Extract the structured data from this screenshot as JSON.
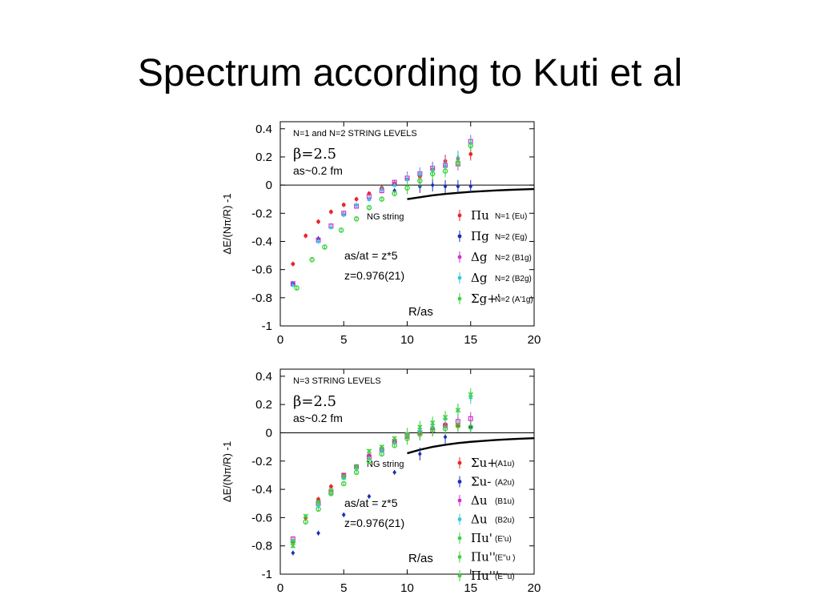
{
  "slide": {
    "title": "Spectrum according to Kuti et al"
  },
  "colors": {
    "red": "#e8262a",
    "blue": "#1a2fb4",
    "magenta": "#cc33cc",
    "cyan": "#33c7e6",
    "green": "#3fd23f"
  },
  "chart_data": [
    {
      "type": "scatter",
      "title": "N=1 and N=2 STRING LEVELS",
      "beta_label": "β=2.5",
      "spacing_label": "as~0.2 fm",
      "ratio_label": "as/at = z*5",
      "z_label": "z=0.976(21)",
      "xlabel": "R/as",
      "ylabel": "ΔE/(Nπ/R) -1",
      "xlim": [
        0,
        20
      ],
      "ylim": [
        -1,
        0.45
      ],
      "xticks": [
        "0",
        "5",
        "10",
        "15",
        "20"
      ],
      "yticks": [
        "0.4",
        "0.2",
        "0",
        "-0.2",
        "-0.4",
        "-0.6",
        "-0.8",
        "-1"
      ],
      "ng_label": "NG string",
      "ng_curve": {
        "x": [
          10,
          11,
          12,
          13,
          14,
          15,
          16,
          17,
          18,
          19,
          20
        ],
        "y": [
          -0.1,
          -0.086,
          -0.073,
          -0.063,
          -0.055,
          -0.048,
          -0.043,
          -0.038,
          -0.034,
          -0.031,
          -0.028
        ]
      },
      "series": [
        {
          "name": "Πu",
          "state": "N=1 (Eu)",
          "color": "red",
          "x": [
            1,
            2,
            3,
            4,
            5,
            6,
            7,
            8,
            9,
            10,
            11,
            12,
            13,
            14,
            15
          ],
          "y": [
            -0.56,
            -0.36,
            -0.26,
            -0.19,
            -0.14,
            -0.1,
            -0.06,
            -0.02,
            0.01,
            0.04,
            0.06,
            0.11,
            0.17,
            0.19,
            0.22
          ]
        },
        {
          "name": "Πg",
          "state": "N=2 (Eg)",
          "color": "blue",
          "x": [
            1,
            3,
            5,
            7,
            9,
            11,
            12,
            13,
            14,
            15
          ],
          "y": [
            -0.7,
            -0.38,
            -0.21,
            -0.1,
            -0.04,
            -0.01,
            0.0,
            -0.01,
            -0.01,
            -0.01
          ]
        },
        {
          "name": "Δg",
          "state": "N=2 (B1g)",
          "color": "magenta",
          "x": [
            1,
            3,
            4,
            5,
            6,
            7,
            8,
            9,
            10,
            11,
            12,
            13,
            14,
            15
          ],
          "y": [
            -0.7,
            -0.39,
            -0.29,
            -0.2,
            -0.15,
            -0.08,
            -0.04,
            0.02,
            0.05,
            0.08,
            0.12,
            0.14,
            0.15,
            0.31
          ]
        },
        {
          "name": "Δg",
          "state": "N=2 (B2g)",
          "color": "cyan",
          "x": [
            1,
            3,
            4,
            5,
            6,
            7,
            8,
            9,
            10,
            11,
            12,
            13,
            14,
            15
          ],
          "y": [
            -0.71,
            -0.4,
            -0.3,
            -0.21,
            -0.14,
            -0.1,
            -0.03,
            0.0,
            0.04,
            0.08,
            0.11,
            0.14,
            0.2,
            0.3
          ]
        },
        {
          "name": "Σg+'",
          "state": "N=2 (A'1g)",
          "color": "green",
          "x": [
            1.3,
            2.5,
            3.5,
            4.8,
            6,
            7,
            8,
            9,
            10,
            11,
            12,
            13,
            14,
            15
          ],
          "y": [
            -0.73,
            -0.53,
            -0.44,
            -0.32,
            -0.24,
            -0.16,
            -0.1,
            -0.06,
            -0.02,
            0.03,
            0.08,
            0.1,
            0.16,
            0.28
          ]
        }
      ]
    },
    {
      "type": "scatter",
      "title": "N=3 STRING LEVELS",
      "beta_label": "β=2.5",
      "spacing_label": "as~0.2 fm",
      "ratio_label": "as/at = z*5",
      "z_label": "z=0.976(21)",
      "xlabel": "R/as",
      "ylabel": "ΔE/(Nπ/R) -1",
      "xlim": [
        0,
        20
      ],
      "ylim": [
        -1,
        0.45
      ],
      "xticks": [
        "0",
        "5",
        "10",
        "15",
        "20"
      ],
      "yticks": [
        "0.4",
        "0.2",
        "0",
        "-0.2",
        "-0.4",
        "-0.6",
        "-0.8",
        "-1"
      ],
      "ng_label": "NG string",
      "ng_curve": {
        "x": [
          10,
          11,
          12,
          13,
          14,
          15,
          16,
          17,
          18,
          19,
          20
        ],
        "y": [
          -0.145,
          -0.12,
          -0.1,
          -0.085,
          -0.073,
          -0.064,
          -0.057,
          -0.051,
          -0.046,
          -0.042,
          -0.038
        ]
      },
      "series": [
        {
          "name": "Σu+",
          "state": "(A1u)",
          "color": "red",
          "x": [
            1,
            2,
            3,
            4,
            5,
            6,
            7,
            8,
            9,
            10,
            11,
            12,
            13,
            14
          ],
          "y": [
            -0.77,
            -0.6,
            -0.47,
            -0.38,
            -0.3,
            -0.24,
            -0.16,
            -0.11,
            -0.06,
            -0.03,
            0.0,
            0.03,
            0.06,
            0.05
          ]
        },
        {
          "name": "Σu-",
          "state": "(A2u)",
          "color": "blue",
          "x": [
            1,
            3,
            5,
            7,
            9,
            11,
            13,
            15
          ],
          "y": [
            -0.85,
            -0.71,
            -0.58,
            -0.45,
            -0.28,
            -0.15,
            -0.03,
            0.04
          ]
        },
        {
          "name": "Δu",
          "state": "(B1u)",
          "color": "magenta",
          "x": [
            1,
            3,
            4,
            5,
            6,
            7,
            8,
            9,
            10,
            11,
            12,
            13,
            14,
            15
          ],
          "y": [
            -0.75,
            -0.5,
            -0.42,
            -0.3,
            -0.24,
            -0.17,
            -0.12,
            -0.06,
            -0.02,
            0.0,
            0.02,
            0.05,
            0.08,
            0.1
          ]
        },
        {
          "name": "Δu",
          "state": "(B2u)",
          "color": "cyan",
          "x": [
            1,
            3,
            4,
            5,
            6,
            7,
            8,
            9,
            10,
            11,
            12,
            13,
            14,
            15
          ],
          "y": [
            -0.76,
            -0.51,
            -0.41,
            -0.32,
            -0.25,
            -0.18,
            -0.12,
            -0.07,
            -0.02,
            0.02,
            0.05,
            0.1,
            0.16,
            0.25
          ]
        },
        {
          "name": "Πu'",
          "state": "(E'u)",
          "color": "green",
          "x": [
            1,
            2,
            3,
            4,
            5,
            6,
            7,
            8,
            9,
            10,
            11,
            12,
            13,
            14,
            15
          ],
          "y": [
            -0.77,
            -0.63,
            -0.54,
            -0.43,
            -0.36,
            -0.28,
            -0.2,
            -0.15,
            -0.09,
            -0.04,
            -0.01,
            0.02,
            0.03,
            0.05,
            0.04
          ]
        },
        {
          "name": "Πu''",
          "state": "(E''u )",
          "color": "green",
          "x": [
            2,
            4,
            6,
            8,
            10,
            12,
            14,
            15
          ],
          "y": [
            -0.59,
            -0.41,
            -0.24,
            -0.1,
            -0.01,
            0.07,
            0.16,
            0.27
          ]
        },
        {
          "name": "Πu'''",
          "state": "(E'''u)",
          "color": "green",
          "x": [
            1,
            3,
            5,
            7,
            9,
            11,
            13
          ],
          "y": [
            -0.8,
            -0.49,
            -0.31,
            -0.13,
            -0.04,
            0.04,
            0.11
          ]
        }
      ]
    }
  ]
}
